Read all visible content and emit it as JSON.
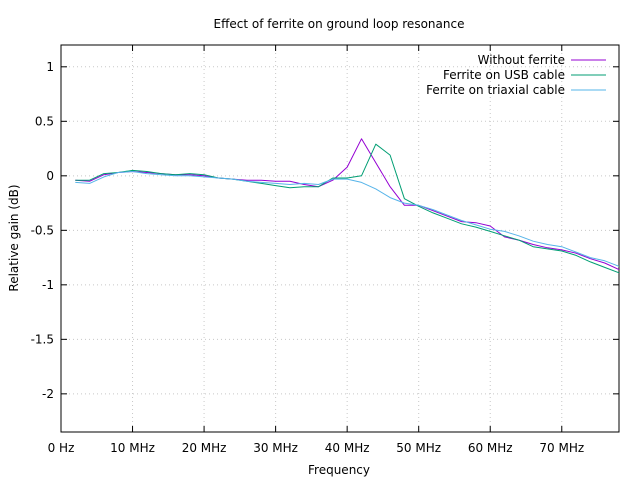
{
  "chart_data": {
    "type": "line",
    "title": "Effect of ferrite on ground loop resonance",
    "xlabel": "Frequency",
    "ylabel": "Relative gain (dB)",
    "xlim": [
      0,
      78
    ],
    "ylim": [
      -2.35,
      1.2
    ],
    "xticks": [
      {
        "value": 0,
        "label": "0  Hz"
      },
      {
        "value": 10,
        "label": "10 MHz"
      },
      {
        "value": 20,
        "label": "20 MHz"
      },
      {
        "value": 30,
        "label": "30 MHz"
      },
      {
        "value": 40,
        "label": "40 MHz"
      },
      {
        "value": 50,
        "label": "50 MHz"
      },
      {
        "value": 60,
        "label": "60 MHz"
      },
      {
        "value": 70,
        "label": "70 MHz"
      }
    ],
    "yticks": [
      {
        "value": 1,
        "label": "1"
      },
      {
        "value": 0.5,
        "label": "0.5"
      },
      {
        "value": 0,
        "label": "0"
      },
      {
        "value": -0.5,
        "label": "-0.5"
      },
      {
        "value": -1,
        "label": "-1"
      },
      {
        "value": -1.5,
        "label": "-1.5"
      },
      {
        "value": -2,
        "label": "-2"
      }
    ],
    "grid": true,
    "legend_position": "top-right",
    "series": [
      {
        "name": "Without ferrite",
        "color": "#9400d3",
        "x": [
          2,
          4,
          6,
          8,
          10,
          12,
          14,
          16,
          18,
          20,
          22,
          24,
          26,
          28,
          30,
          32,
          34,
          36,
          38,
          40,
          42,
          44,
          46,
          48,
          50,
          52,
          54,
          56,
          58,
          60,
          62,
          64,
          66,
          68,
          70,
          72,
          74,
          76,
          78
        ],
        "y": [
          -0.04,
          -0.05,
          0.01,
          0.03,
          0.04,
          0.03,
          0.02,
          0.01,
          0.01,
          0.0,
          -0.02,
          -0.03,
          -0.04,
          -0.04,
          -0.05,
          -0.05,
          -0.08,
          -0.1,
          -0.04,
          0.08,
          0.34,
          0.12,
          -0.1,
          -0.27,
          -0.27,
          -0.32,
          -0.37,
          -0.42,
          -0.43,
          -0.46,
          -0.56,
          -0.59,
          -0.63,
          -0.66,
          -0.68,
          -0.71,
          -0.76,
          -0.8,
          -0.86
        ]
      },
      {
        "name": "Ferrite on USB cable",
        "color": "#009e73",
        "x": [
          2,
          4,
          6,
          8,
          10,
          12,
          14,
          16,
          18,
          20,
          22,
          24,
          26,
          28,
          30,
          32,
          34,
          36,
          38,
          40,
          42,
          44,
          46,
          48,
          50,
          52,
          54,
          56,
          58,
          60,
          62,
          64,
          66,
          68,
          70,
          72,
          74,
          76,
          78
        ],
        "y": [
          -0.04,
          -0.04,
          0.02,
          0.03,
          0.05,
          0.04,
          0.02,
          0.01,
          0.02,
          0.01,
          -0.02,
          -0.03,
          -0.05,
          -0.07,
          -0.09,
          -0.11,
          -0.1,
          -0.1,
          -0.02,
          -0.02,
          0.0,
          0.29,
          0.19,
          -0.21,
          -0.28,
          -0.34,
          -0.39,
          -0.44,
          -0.47,
          -0.51,
          -0.55,
          -0.59,
          -0.65,
          -0.67,
          -0.69,
          -0.73,
          -0.79,
          -0.84,
          -0.89
        ]
      },
      {
        "name": "Ferrite on triaxial cable",
        "color": "#56b4e9",
        "x": [
          2,
          4,
          6,
          8,
          10,
          12,
          14,
          16,
          18,
          20,
          22,
          24,
          26,
          28,
          30,
          32,
          34,
          36,
          38,
          40,
          42,
          44,
          46,
          48,
          50,
          52,
          54,
          56,
          58,
          60,
          62,
          64,
          66,
          68,
          70,
          72,
          74,
          76,
          78
        ],
        "y": [
          -0.06,
          -0.07,
          -0.01,
          0.03,
          0.04,
          0.02,
          0.01,
          0.0,
          0.0,
          -0.01,
          -0.02,
          -0.03,
          -0.05,
          -0.06,
          -0.07,
          -0.08,
          -0.07,
          -0.08,
          -0.03,
          -0.03,
          -0.06,
          -0.12,
          -0.2,
          -0.25,
          -0.27,
          -0.31,
          -0.36,
          -0.41,
          -0.45,
          -0.49,
          -0.51,
          -0.55,
          -0.6,
          -0.63,
          -0.65,
          -0.7,
          -0.75,
          -0.78,
          -0.83
        ]
      }
    ]
  }
}
